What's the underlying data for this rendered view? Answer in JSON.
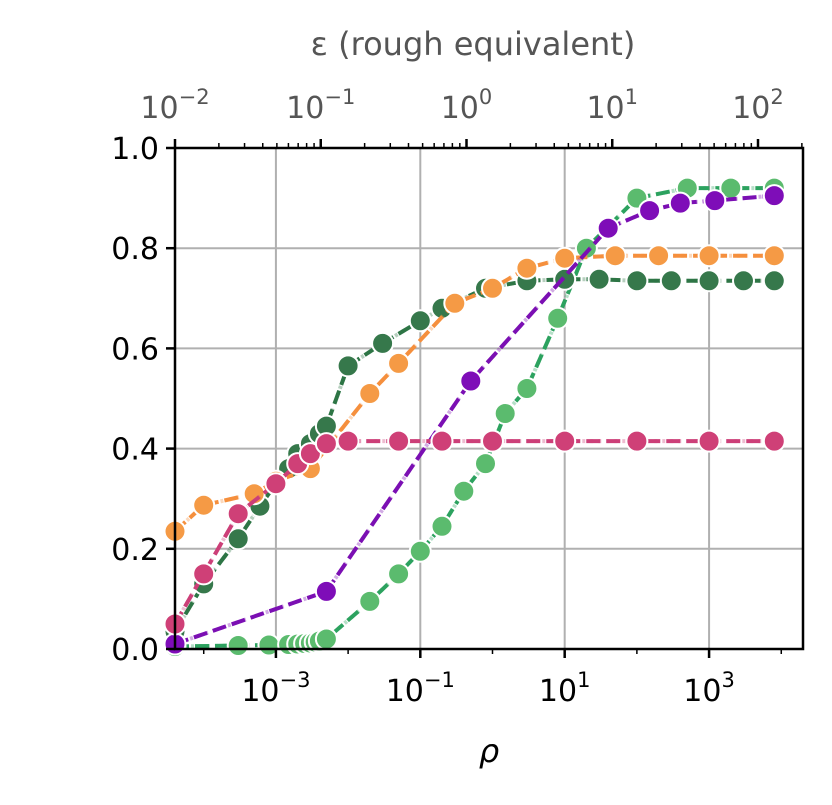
{
  "chart_data": {
    "type": "line",
    "xlabel": "ρ",
    "ylabel": "",
    "x_scale": "log",
    "xlim": [
      4e-05,
      20000
    ],
    "ylim": [
      0.0,
      1.0
    ],
    "grid": true,
    "x_ticks": [
      {
        "value": 0.001,
        "base": "10",
        "exp": "−3"
      },
      {
        "value": 0.1,
        "base": "10",
        "exp": "−1"
      },
      {
        "value": 10,
        "base": "10",
        "exp": "1"
      },
      {
        "value": 1000,
        "base": "10",
        "exp": "3"
      }
    ],
    "y_ticks": [
      "0.0",
      "0.2",
      "0.4",
      "0.6",
      "0.8",
      "1.0"
    ],
    "top_axis": {
      "label": "ε (rough equivalent)",
      "ticks": [
        {
          "value": 0.01,
          "base": "10",
          "exp": "−2"
        },
        {
          "value": 0.1,
          "base": "10",
          "exp": "−1"
        },
        {
          "value": 1,
          "base": "10",
          "exp": "0"
        },
        {
          "value": 10,
          "base": "10",
          "exp": "1"
        },
        {
          "value": 100,
          "base": "10",
          "exp": "2"
        }
      ]
    },
    "series": [
      {
        "color": "#2ca25f",
        "x": [
          4e-05,
          0.0003,
          0.0008,
          0.0015,
          0.002,
          0.0025,
          0.003,
          0.0035,
          0.004,
          0.005,
          0.02,
          0.05,
          0.1,
          0.2,
          0.4,
          0.8,
          1.5,
          3,
          8,
          20,
          100,
          500,
          2000,
          8000
        ],
        "y": [
          0.005,
          0.007,
          0.008,
          0.009,
          0.01,
          0.011,
          0.012,
          0.014,
          0.016,
          0.02,
          0.095,
          0.15,
          0.195,
          0.245,
          0.315,
          0.37,
          0.47,
          0.52,
          0.66,
          0.8,
          0.9,
          0.92,
          0.92,
          0.92
        ],
        "marker_color": "#5bbb6e"
      },
      {
        "color": "#2d7545",
        "x": [
          4e-05,
          0.0001,
          0.0003,
          0.0006,
          0.001,
          0.0015,
          0.002,
          0.003,
          0.004,
          0.005,
          0.01,
          0.03,
          0.1,
          0.2,
          0.8,
          3,
          10,
          30,
          100,
          300,
          1000,
          3000,
          8000
        ],
        "y": [
          0.035,
          0.13,
          0.22,
          0.285,
          0.33,
          0.36,
          0.39,
          0.41,
          0.43,
          0.445,
          0.565,
          0.61,
          0.655,
          0.68,
          0.72,
          0.735,
          0.738,
          0.738,
          0.735,
          0.735,
          0.735,
          0.735,
          0.735
        ],
        "marker_color": "#36784b"
      },
      {
        "color": "#f58f3d",
        "x": [
          4e-05,
          0.0001,
          0.0005,
          0.001,
          0.003,
          0.02,
          0.05,
          0.3,
          1,
          3,
          10,
          50,
          200,
          1000,
          8000
        ],
        "y": [
          0.235,
          0.287,
          0.31,
          0.335,
          0.36,
          0.51,
          0.57,
          0.69,
          0.72,
          0.76,
          0.78,
          0.785,
          0.785,
          0.785,
          0.785
        ],
        "marker_color": "#f59a45"
      },
      {
        "color": "#7b0fb3",
        "x": [
          4e-05,
          0.005,
          0.5,
          40,
          150,
          400,
          1200,
          8000
        ],
        "y": [
          0.01,
          0.115,
          0.535,
          0.84,
          0.875,
          0.89,
          0.895,
          0.905
        ],
        "marker_color": "#7e0db8"
      },
      {
        "color": "#cc3f78",
        "x": [
          4e-05,
          0.0001,
          0.0003,
          0.001,
          0.002,
          0.003,
          0.005,
          0.01,
          0.05,
          0.2,
          1,
          10,
          100,
          1000,
          8000
        ],
        "y": [
          0.05,
          0.15,
          0.27,
          0.33,
          0.37,
          0.39,
          0.41,
          0.415,
          0.415,
          0.415,
          0.415,
          0.415,
          0.415,
          0.415,
          0.415
        ],
        "marker_color": "#cf4077"
      }
    ]
  }
}
